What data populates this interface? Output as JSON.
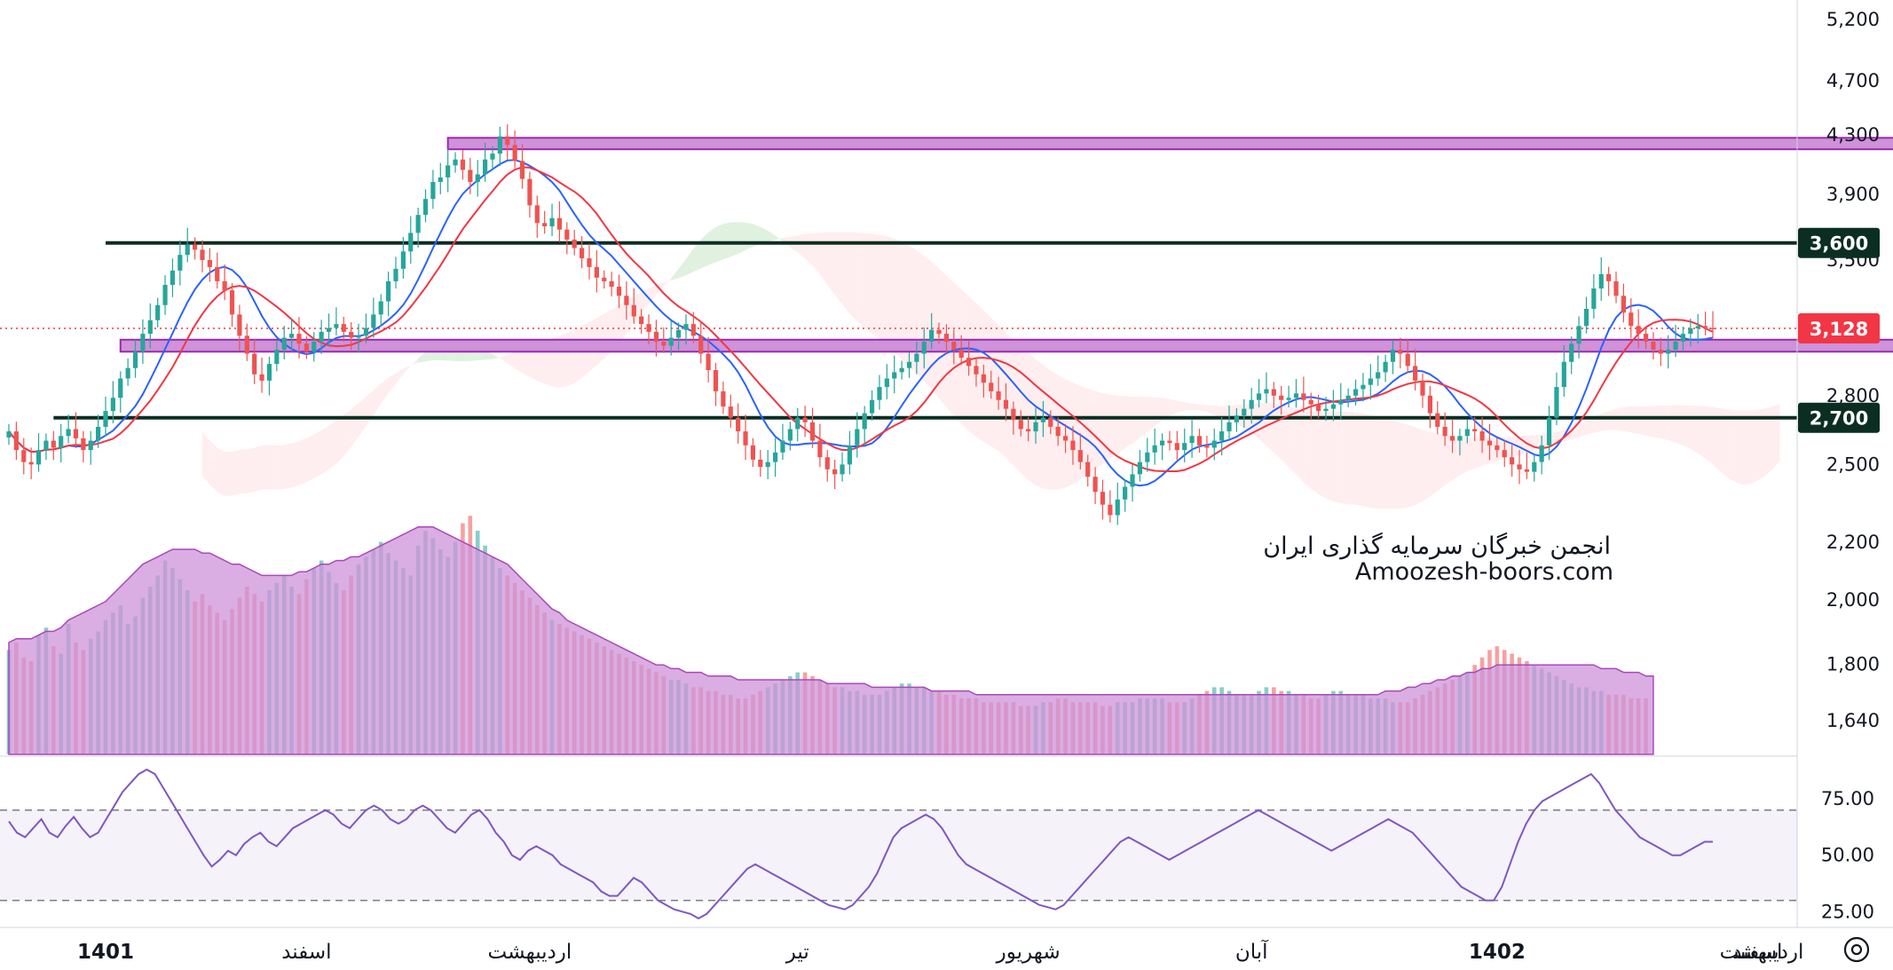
{
  "watermark": {
    "line1": "انجمن خبرگان سرمایه گذاری ایران",
    "line2": "Amoozesh-boors.com"
  },
  "colors": {
    "up": "#26a69a",
    "down": "#ef5350",
    "ma_fast": "#2962ff",
    "ma_slow": "#f23645",
    "zone": "#ce93d8",
    "zone_border": "#9c27b0",
    "support_line": "#0b2e22",
    "rsi": "#7e57c2",
    "volume_ma": "#ce93d8",
    "cloud_green": "#a5d6a7",
    "cloud_red": "#ffcdd2",
    "last_price": "#f23645"
  },
  "chart_data": {
    "type": "candlestick",
    "price_axis": {
      "ticks": [
        "5,200",
        "4,700",
        "4,300",
        "3,900",
        "3,500",
        "2,800",
        "2,500",
        "2,200",
        "2,000",
        "1,800",
        "1,640"
      ],
      "tick_values": [
        5200,
        4700,
        4300,
        3900,
        3500,
        2800,
        2500,
        2200,
        2000,
        1800,
        1640
      ],
      "scale": "log",
      "range": [
        1560,
        5300
      ]
    },
    "rsi_axis": {
      "ticks": [
        "75.00",
        "50.00",
        "25.00"
      ],
      "tick_values": [
        75,
        50,
        25
      ],
      "upper_band": 70,
      "lower_band": 30,
      "range": [
        20,
        90
      ]
    },
    "time_axis": {
      "labels": [
        "1401",
        "اسفند",
        "اردیبهشت",
        "تیر",
        "شهریور",
        "آبان",
        "1402",
        "اسفند",
        "اردیبهشت"
      ],
      "bold": [
        true,
        false,
        false,
        false,
        false,
        false,
        true,
        false,
        false
      ],
      "label_index": [
        13,
        40,
        70,
        106,
        137,
        167,
        200,
        235,
        262
      ]
    },
    "last_price": {
      "value": 3128,
      "label": "3,128"
    },
    "horizontal_lines": [
      {
        "value": 3600,
        "label": "3,600",
        "from_index": 13,
        "to_index": 289
      },
      {
        "value": 2700,
        "label": "2,700",
        "from_index": 6,
        "to_index": 289
      }
    ],
    "zones": [
      {
        "from_index": 59,
        "to_index": 262,
        "low": 4200,
        "high": 4280
      },
      {
        "from_index": 15,
        "to_index": 262,
        "low": 3010,
        "high": 3070
      }
    ],
    "closes": [
      2640,
      2560,
      2510,
      2500,
      2560,
      2600,
      2570,
      2620,
      2650,
      2610,
      2560,
      2600,
      2660,
      2730,
      2790,
      2880,
      2930,
      3010,
      3100,
      3170,
      3250,
      3360,
      3440,
      3530,
      3590,
      3560,
      3500,
      3460,
      3380,
      3330,
      3200,
      3090,
      3000,
      2900,
      2870,
      2950,
      3020,
      3080,
      3100,
      3050,
      3010,
      3060,
      3110,
      3130,
      3150,
      3110,
      3080,
      3090,
      3130,
      3200,
      3270,
      3380,
      3450,
      3550,
      3660,
      3770,
      3870,
      3980,
      4010,
      4090,
      4130,
      4060,
      3980,
      4030,
      4130,
      4170,
      4290,
      4230,
      4120,
      4000,
      3830,
      3720,
      3700,
      3750,
      3680,
      3620,
      3570,
      3510,
      3460,
      3400,
      3380,
      3350,
      3300,
      3250,
      3190,
      3150,
      3110,
      3060,
      3040,
      3080,
      3120,
      3150,
      3090,
      3000,
      2920,
      2820,
      2750,
      2700,
      2640,
      2580,
      2520,
      2490,
      2510,
      2550,
      2600,
      2650,
      2700,
      2680,
      2600,
      2530,
      2480,
      2460,
      2500,
      2580,
      2650,
      2720,
      2780,
      2840,
      2880,
      2910,
      2930,
      2960,
      3000,
      3060,
      3120,
      3100,
      3060,
      3020,
      2980,
      2940,
      2900,
      2860,
      2820,
      2780,
      2740,
      2690,
      2650,
      2640,
      2680,
      2700,
      2660,
      2620,
      2600,
      2560,
      2510,
      2450,
      2390,
      2340,
      2300,
      2360,
      2410,
      2460,
      2510,
      2550,
      2580,
      2600,
      2590,
      2560,
      2590,
      2620,
      2580,
      2570,
      2600,
      2640,
      2680,
      2710,
      2740,
      2780,
      2810,
      2830,
      2800,
      2780,
      2790,
      2810,
      2780,
      2760,
      2730,
      2740,
      2760,
      2780,
      2800,
      2830,
      2850,
      2880,
      2910,
      2960,
      3020,
      3000,
      2940,
      2870,
      2800,
      2720,
      2660,
      2620,
      2600,
      2620,
      2650,
      2640,
      2600,
      2580,
      2560,
      2530,
      2500,
      2480,
      2470,
      2510,
      2580,
      2700,
      2840,
      2960,
      3050,
      3140,
      3230,
      3340,
      3420,
      3380,
      3300,
      3210,
      3140,
      3100,
      3060,
      3020,
      3000,
      3020,
      3060,
      3100,
      3128,
      3140,
      3130,
      3128
    ]
  },
  "volume": {
    "values": [
      28,
      30,
      26,
      25,
      32,
      34,
      29,
      27,
      35,
      30,
      28,
      31,
      33,
      36,
      38,
      40,
      35,
      37,
      42,
      45,
      48,
      52,
      50,
      47,
      44,
      41,
      43,
      40,
      38,
      36,
      39,
      42,
      45,
      43,
      41,
      44,
      46,
      48,
      45,
      43,
      47,
      50,
      52,
      49,
      46,
      44,
      48,
      51,
      53,
      55,
      57,
      54,
      52,
      50,
      48,
      56,
      60,
      58,
      55,
      53,
      57,
      62,
      64,
      60,
      56,
      53,
      50,
      48,
      46,
      44,
      42,
      40,
      38,
      36,
      35,
      34,
      33,
      32,
      31,
      30,
      29,
      28,
      27,
      26,
      25,
      24,
      23,
      22,
      21,
      20,
      20,
      19,
      18,
      18,
      17,
      17,
      16,
      16,
      15,
      15,
      16,
      17,
      18,
      19,
      20,
      21,
      22,
      22,
      21,
      20,
      19,
      18,
      18,
      17,
      17,
      16,
      16,
      16,
      17,
      18,
      19,
      19,
      18,
      18,
      17,
      17,
      16,
      16,
      15,
      15,
      15,
      14,
      14,
      14,
      14,
      14,
      13,
      13,
      13,
      14,
      14,
      15,
      15,
      14,
      14,
      14,
      14,
      13,
      13,
      14,
      14,
      14,
      15,
      15,
      15,
      15,
      14,
      14,
      14,
      15,
      16,
      17,
      18,
      18,
      17,
      16,
      16,
      16,
      17,
      18,
      18,
      17,
      17,
      16,
      16,
      15,
      15,
      16,
      17,
      17,
      16,
      16,
      16,
      15,
      15,
      15,
      14,
      14,
      14,
      15,
      16,
      17,
      18,
      19,
      20,
      21,
      22,
      24,
      26,
      28,
      29,
      28,
      27,
      26,
      25,
      24,
      23,
      22,
      21,
      20,
      19,
      18,
      18,
      17,
      17,
      16,
      16,
      16,
      15,
      15,
      15
    ],
    "ma": [
      30,
      31,
      31,
      31,
      32,
      33,
      33,
      34,
      36,
      37,
      38,
      39,
      40,
      41,
      43,
      45,
      47,
      49,
      51,
      52,
      53,
      54,
      55,
      55,
      55,
      55,
      54,
      54,
      53,
      52,
      51,
      51,
      50,
      49,
      48,
      48,
      48,
      48,
      48,
      49,
      49,
      50,
      51,
      51,
      52,
      52,
      53,
      53,
      54,
      55,
      56,
      57,
      58,
      59,
      60,
      61,
      61,
      61,
      60,
      59,
      58,
      57,
      56,
      55,
      54,
      53,
      52,
      51,
      49,
      47,
      45,
      43,
      41,
      39,
      38,
      36,
      35,
      34,
      33,
      32,
      31,
      30,
      29,
      28,
      27,
      26,
      25,
      24,
      24,
      23,
      23,
      22,
      22,
      22,
      21,
      21,
      21,
      21,
      20,
      20,
      20,
      20,
      20,
      20,
      20,
      20,
      20,
      20,
      20,
      20,
      19,
      19,
      19,
      19,
      19,
      19,
      18,
      18,
      18,
      18,
      18,
      18,
      18,
      18,
      17,
      17,
      17,
      17,
      17,
      17,
      16,
      16,
      16,
      16,
      16,
      16,
      16,
      16,
      16,
      16,
      16,
      16,
      16,
      16,
      16,
      16,
      16,
      16,
      16,
      16,
      16,
      16,
      16,
      16,
      16,
      16,
      16,
      16,
      16,
      16,
      16,
      16,
      16,
      16,
      16,
      16,
      16,
      16,
      16,
      16,
      16,
      16,
      16,
      16,
      16,
      16,
      16,
      16,
      16,
      16,
      16,
      16,
      16,
      16,
      16,
      17,
      17,
      17,
      18,
      18,
      19,
      19,
      20,
      20,
      21,
      21,
      22,
      22,
      23,
      23,
      24,
      24,
      24,
      24,
      24,
      24,
      24,
      24,
      24,
      24,
      24,
      24,
      24,
      24,
      23,
      23,
      23,
      22,
      22,
      22,
      21,
      21
    ]
  },
  "rsi": {
    "values": [
      65,
      60,
      58,
      62,
      66,
      60,
      58,
      63,
      67,
      62,
      58,
      60,
      66,
      72,
      78,
      82,
      86,
      88,
      86,
      80,
      74,
      68,
      62,
      56,
      50,
      45,
      48,
      52,
      50,
      55,
      58,
      60,
      56,
      54,
      58,
      62,
      64,
      66,
      68,
      70,
      68,
      64,
      62,
      66,
      70,
      72,
      70,
      66,
      64,
      66,
      70,
      72,
      70,
      66,
      62,
      60,
      64,
      68,
      70,
      66,
      60,
      56,
      50,
      48,
      52,
      54,
      52,
      50,
      46,
      44,
      42,
      40,
      38,
      34,
      32,
      32,
      36,
      40,
      38,
      34,
      30,
      28,
      26,
      25,
      24,
      22,
      24,
      28,
      32,
      36,
      40,
      44,
      46,
      44,
      42,
      40,
      38,
      36,
      34,
      32,
      30,
      28,
      27,
      26,
      28,
      32,
      36,
      42,
      50,
      58,
      62,
      64,
      66,
      68,
      66,
      62,
      56,
      50,
      46,
      44,
      42,
      40,
      38,
      36,
      34,
      32,
      30,
      28,
      27,
      26,
      28,
      32,
      36,
      40,
      44,
      48,
      52,
      56,
      58,
      56,
      54,
      52,
      50,
      48,
      50,
      52,
      54,
      56,
      58,
      60,
      62,
      64,
      66,
      68,
      70,
      68,
      66,
      64,
      62,
      60,
      58,
      56,
      54,
      52,
      54,
      56,
      58,
      60,
      62,
      64,
      66,
      64,
      62,
      60,
      56,
      52,
      48,
      44,
      40,
      36,
      34,
      32,
      30,
      30,
      36,
      46,
      56,
      64,
      70,
      74,
      76,
      78,
      80,
      82,
      84,
      86,
      82,
      76,
      70,
      66,
      62,
      58,
      56,
      54,
      52,
      50,
      50,
      52,
      54,
      56,
      56
    ]
  }
}
